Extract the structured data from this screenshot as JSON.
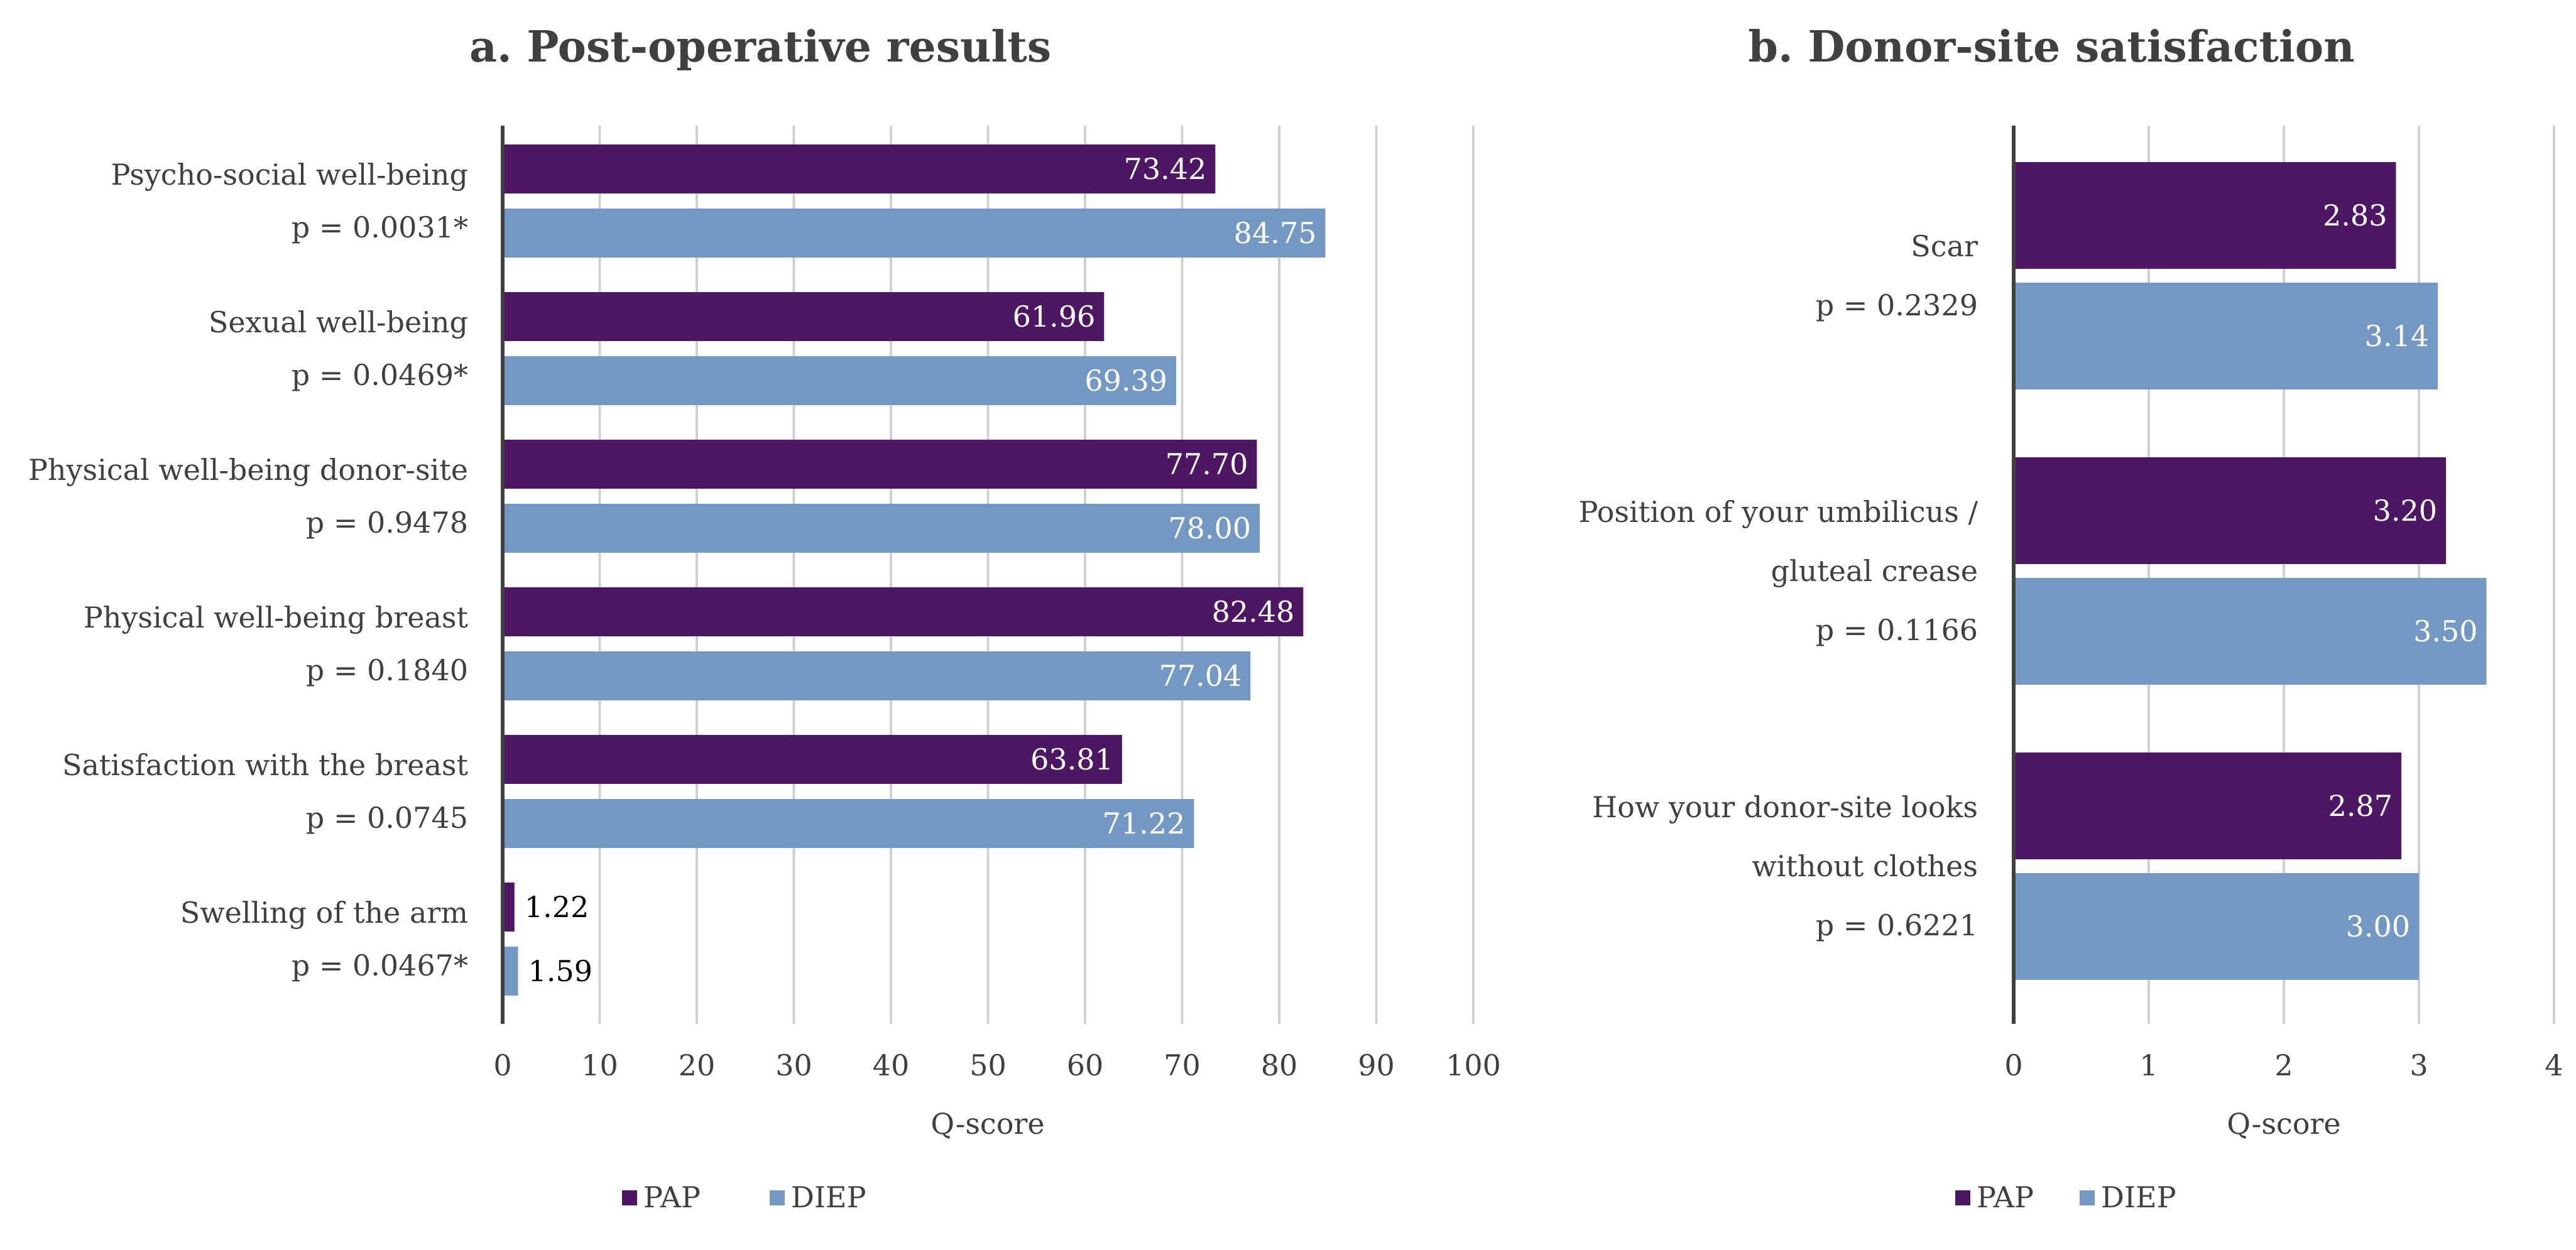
{
  "legend": {
    "pap": "PAP",
    "diep": "DIEP"
  },
  "colors": {
    "pap": "#4E1764",
    "diep": "#7398C4",
    "grid": "#D0D0D0",
    "axis": "#404040",
    "text": "#404040"
  },
  "chart_data": [
    {
      "type": "bar",
      "orientation": "horizontal",
      "title": "a. Post-operative results",
      "xlabel": "Q-score",
      "xlim": [
        0,
        100
      ],
      "xticks": [
        "0",
        "10",
        "20",
        "30",
        "40",
        "50",
        "60",
        "70",
        "80",
        "90",
        "100"
      ],
      "categories": [
        {
          "lines": [
            "Psycho-social well-being",
            "p = 0.0031*"
          ]
        },
        {
          "lines": [
            "Sexual well-being",
            "p = 0.0469*"
          ]
        },
        {
          "lines": [
            "Physical well-being donor-site",
            "p = 0.9478"
          ]
        },
        {
          "lines": [
            "Physical well-being breast",
            "p = 0.1840"
          ]
        },
        {
          "lines": [
            "Satisfaction with the breast",
            "p = 0.0745"
          ]
        },
        {
          "lines": [
            "Swelling of the arm",
            "p = 0.0467*"
          ]
        }
      ],
      "series": [
        {
          "name": "PAP",
          "values": [
            73.42,
            61.96,
            77.7,
            82.48,
            63.81,
            1.22
          ],
          "labels": [
            "73.42",
            "61.96",
            "77.70",
            "82.48",
            "63.81",
            "1.22"
          ]
        },
        {
          "name": "DIEP",
          "values": [
            84.75,
            69.39,
            78.0,
            77.04,
            71.22,
            1.59
          ],
          "labels": [
            "84.75",
            "69.39",
            "78.00",
            "77.04",
            "71.22",
            "1.59"
          ]
        }
      ],
      "legend_position": "bottom-left"
    },
    {
      "type": "bar",
      "orientation": "horizontal",
      "title": "b. Donor-site satisfaction",
      "xlabel": "Q-score",
      "xlim": [
        0,
        4
      ],
      "xticks": [
        "0",
        "1",
        "2",
        "3",
        "4"
      ],
      "categories": [
        {
          "lines": [
            "Scar",
            "p = 0.2329"
          ]
        },
        {
          "lines": [
            "Position of your umbilicus /",
            "gluteal crease",
            "p = 0.1166"
          ]
        },
        {
          "lines": [
            "How your donor-site looks",
            "without clothes",
            "p = 0.6221"
          ]
        }
      ],
      "series": [
        {
          "name": "PAP",
          "values": [
            2.83,
            3.2,
            2.87
          ],
          "labels": [
            "2.83",
            "3.20",
            "2.87"
          ]
        },
        {
          "name": "DIEP",
          "values": [
            3.14,
            3.5,
            3.0
          ],
          "labels": [
            "3.14",
            "3.50",
            "3.00"
          ]
        }
      ],
      "legend_position": "bottom-right"
    }
  ]
}
